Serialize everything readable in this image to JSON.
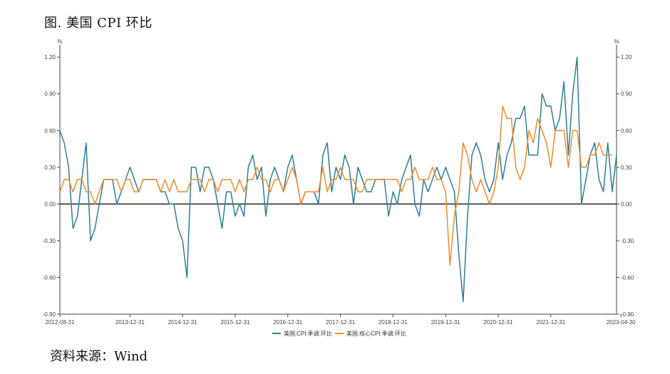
{
  "title": "图. 美国 CPI 环比",
  "source": "资料来源：Wind",
  "chart_data": {
    "type": "line",
    "y_unit_left": "%",
    "y_unit_right": "%",
    "ylim": [
      -0.9,
      1.3
    ],
    "yticks": [
      "1.20",
      "0.90",
      "0.60",
      "0.30",
      "0.00",
      "-0.30",
      "-0.60",
      "-0.90"
    ],
    "ytick_values": [
      1.2,
      0.9,
      0.6,
      0.3,
      0.0,
      -0.3,
      -0.6,
      -0.9
    ],
    "xticks": [
      "2012-08-31",
      "2013-12-31",
      "2014-12-31",
      "2015-12-31",
      "2016-12-31",
      "2017-12-31",
      "2018-12-31",
      "2019-12-31",
      "2020-12-31",
      "2021-12-31",
      "2023-04-30"
    ],
    "xtick_index": [
      0,
      16,
      28,
      40,
      52,
      64,
      76,
      88,
      100,
      112,
      128
    ],
    "grid": false,
    "zero_line": true,
    "legend_position": "bottom",
    "colors": {
      "cpi": "#2e7d9b",
      "core": "#f08c28",
      "axis": "#444444"
    },
    "series": [
      {
        "name": "美国:CPI:季调:环比",
        "values": [
          0.6,
          0.5,
          0.3,
          -0.2,
          -0.1,
          0.2,
          0.5,
          -0.3,
          -0.2,
          0.0,
          0.2,
          0.2,
          0.2,
          0.0,
          0.1,
          0.2,
          0.3,
          0.2,
          0.1,
          0.2,
          0.2,
          0.2,
          0.2,
          0.1,
          0.1,
          0.0,
          0.0,
          -0.2,
          -0.3,
          -0.6,
          0.3,
          0.3,
          0.1,
          0.3,
          0.3,
          0.2,
          0.0,
          -0.2,
          0.1,
          0.1,
          -0.1,
          0.0,
          -0.1,
          0.3,
          0.4,
          0.2,
          0.3,
          -0.1,
          0.2,
          0.3,
          0.2,
          0.1,
          0.3,
          0.4,
          0.2,
          0.0,
          0.1,
          0.1,
          0.1,
          0.0,
          0.4,
          0.5,
          0.1,
          0.3,
          0.2,
          0.4,
          0.3,
          0.0,
          0.3,
          0.2,
          0.1,
          0.1,
          0.2,
          0.2,
          0.2,
          -0.1,
          0.1,
          0.0,
          0.2,
          0.3,
          0.4,
          0.0,
          -0.1,
          0.2,
          0.1,
          0.2,
          0.3,
          0.2,
          0.3,
          0.2,
          0.1,
          -0.4,
          -0.8,
          -0.1,
          0.4,
          0.5,
          0.4,
          0.2,
          0.1,
          0.2,
          0.5,
          0.2,
          0.4,
          0.5,
          0.7,
          0.7,
          0.8,
          0.4,
          0.4,
          0.4,
          0.9,
          0.8,
          0.8,
          0.6,
          0.7,
          1.0,
          0.4,
          0.9,
          1.2,
          0.0,
          0.2,
          0.4,
          0.5,
          0.2,
          0.1,
          0.5,
          0.1,
          0.4
        ],
        "color": "#2e7d9b"
      },
      {
        "name": "美国:核心CPI:季调:环比",
        "values": [
          0.1,
          0.2,
          0.2,
          0.1,
          0.2,
          0.2,
          0.1,
          0.1,
          0.0,
          0.1,
          0.2,
          0.2,
          0.2,
          0.2,
          0.1,
          0.2,
          0.2,
          0.1,
          0.1,
          0.2,
          0.2,
          0.2,
          0.2,
          0.1,
          0.2,
          0.1,
          0.2,
          0.1,
          0.1,
          0.1,
          0.2,
          0.2,
          0.2,
          0.1,
          0.2,
          0.2,
          0.1,
          0.2,
          0.2,
          0.2,
          0.1,
          0.2,
          0.1,
          0.2,
          0.2,
          0.3,
          0.2,
          0.2,
          0.1,
          0.2,
          0.2,
          0.1,
          0.2,
          0.3,
          0.2,
          0.0,
          0.1,
          0.1,
          0.1,
          0.1,
          0.3,
          0.1,
          0.2,
          0.2,
          0.3,
          0.2,
          0.2,
          0.2,
          0.1,
          0.1,
          0.2,
          0.2,
          0.2,
          0.2,
          0.2,
          0.2,
          0.2,
          0.2,
          0.1,
          0.2,
          0.2,
          0.3,
          0.2,
          0.2,
          0.2,
          0.3,
          0.2,
          0.2,
          0.1,
          -0.5,
          -0.1,
          0.1,
          0.5,
          0.4,
          0.2,
          0.1,
          0.2,
          0.1,
          0.0,
          0.1,
          0.3,
          0.8,
          0.7,
          0.7,
          0.3,
          0.2,
          0.3,
          0.6,
          0.5,
          0.7,
          0.6,
          0.5,
          0.3,
          0.6,
          0.6,
          0.6,
          0.3,
          0.6,
          0.6,
          0.3,
          0.3,
          0.4,
          0.4,
          0.5,
          0.4,
          0.4,
          0.4
        ]
      }
    ]
  }
}
